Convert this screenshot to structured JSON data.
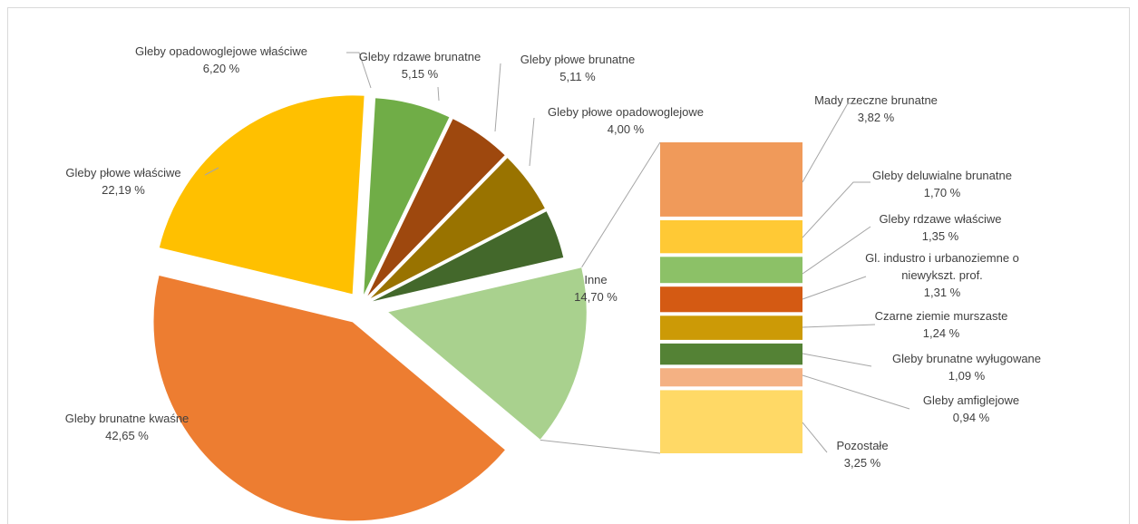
{
  "chart_data": {
    "type": "bar-of-pie",
    "pie": {
      "slices": [
        {
          "name": "Gleby opadowoglejowe właściwe",
          "value": 6.2,
          "label": "6,20 %",
          "color": "#70ad47"
        },
        {
          "name": "Gleby rdzawe brunatne",
          "value": 5.15,
          "label": "5,15 %",
          "color": "#9e480e"
        },
        {
          "name": "Gleby płowe brunatne",
          "value": 5.11,
          "label": "5,11 %",
          "color": "#997300"
        },
        {
          "name": "Gleby płowe opadowoglejowe",
          "value": 4.0,
          "label": "4,00 %",
          "color": "#43682b"
        },
        {
          "name": "Inne",
          "value": 14.7,
          "label": "14,70 %",
          "color": "#a9d18e"
        },
        {
          "name": "Gleby brunatne kwaśne",
          "value": 42.65,
          "label": "42,65 %",
          "color": "#ed7d31"
        },
        {
          "name": "Gleby płowe właściwe",
          "value": 22.19,
          "label": "22,19 %",
          "color": "#ffc000"
        }
      ]
    },
    "bar": {
      "segments": [
        {
          "name": "Mady rzeczne brunatne",
          "value": 3.82,
          "label": "3,82 %",
          "color": "#f09a5a"
        },
        {
          "name": "Gleby deluwialne brunatne",
          "value": 1.7,
          "label": "1,70 %",
          "color": "#ffc935"
        },
        {
          "name": "Gleby rdzawe właściwe",
          "value": 1.35,
          "label": "1,35 %",
          "color": "#8cc167"
        },
        {
          "name": "Gl. industro i urbanoziemne o niewykszt. prof.",
          "value": 1.31,
          "label": "1,31 %",
          "color": "#d45a13"
        },
        {
          "name": "Czarne ziemie murszaste",
          "value": 1.24,
          "label": "1,24 %",
          "color": "#cc9a06"
        },
        {
          "name": "Gleby brunatne wyługowane",
          "value": 1.09,
          "label": "1,09 %",
          "color": "#548235"
        },
        {
          "name": "Gleby amfiglejowe",
          "value": 0.94,
          "label": "0,94 %",
          "color": "#f4b183"
        },
        {
          "name": "Pozostałe",
          "value": 3.25,
          "label": "3,25 %",
          "color": "#ffd966"
        }
      ]
    }
  }
}
